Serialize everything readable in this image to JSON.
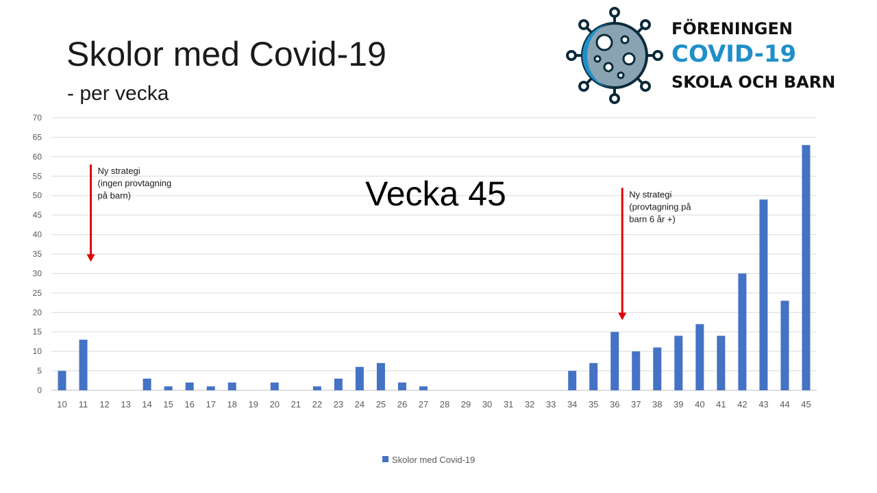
{
  "slide": {
    "title": "Skolor med Covid-19",
    "subtitle": "- per vecka"
  },
  "logo": {
    "line1": "FÖRENINGEN",
    "line2": "COVID-19",
    "line3": "SKOLA OCH BARN",
    "icon": "virus-icon",
    "colors": {
      "blue": "#1f8fc9",
      "dark": "#0b4f7a",
      "gray": "#8aa3b3"
    }
  },
  "chart_data": {
    "type": "bar",
    "categories": [
      "10",
      "11",
      "12",
      "13",
      "14",
      "15",
      "16",
      "17",
      "18",
      "19",
      "20",
      "21",
      "22",
      "23",
      "24",
      "25",
      "26",
      "27",
      "28",
      "29",
      "30",
      "31",
      "32",
      "33",
      "34",
      "35",
      "36",
      "37",
      "38",
      "39",
      "40",
      "41",
      "42",
      "43",
      "44",
      "45"
    ],
    "series": [
      {
        "name": "Skolor med Covid-19",
        "values": [
          5,
          13,
          0,
          0,
          3,
          1,
          2,
          1,
          2,
          0,
          2,
          0,
          1,
          3,
          6,
          7,
          2,
          1,
          0,
          0,
          0,
          0,
          0,
          0,
          5,
          7,
          15,
          10,
          11,
          14,
          17,
          14,
          30,
          49,
          23,
          63
        ]
      }
    ],
    "yticks": [
      0,
      5,
      10,
      15,
      20,
      25,
      30,
      35,
      40,
      45,
      50,
      55,
      60,
      65,
      70
    ],
    "ylim": [
      0,
      70
    ],
    "grid": true,
    "legend": "bottom-center",
    "bar_color": "#4472c4",
    "big_label": "Vecka 45",
    "annotations": [
      {
        "category": "11",
        "lines": [
          "Ny strategi",
          "(ingen provtagning",
          "på barn)"
        ],
        "arrow_top": 58,
        "arrow_bottom": 33,
        "color": "#e00000"
      },
      {
        "category": "36",
        "lines": [
          "Ny strategi",
          "(provtagning på",
          "barn 6 år +)"
        ],
        "arrow_top": 52,
        "arrow_bottom": 18,
        "color": "#e00000"
      }
    ]
  }
}
